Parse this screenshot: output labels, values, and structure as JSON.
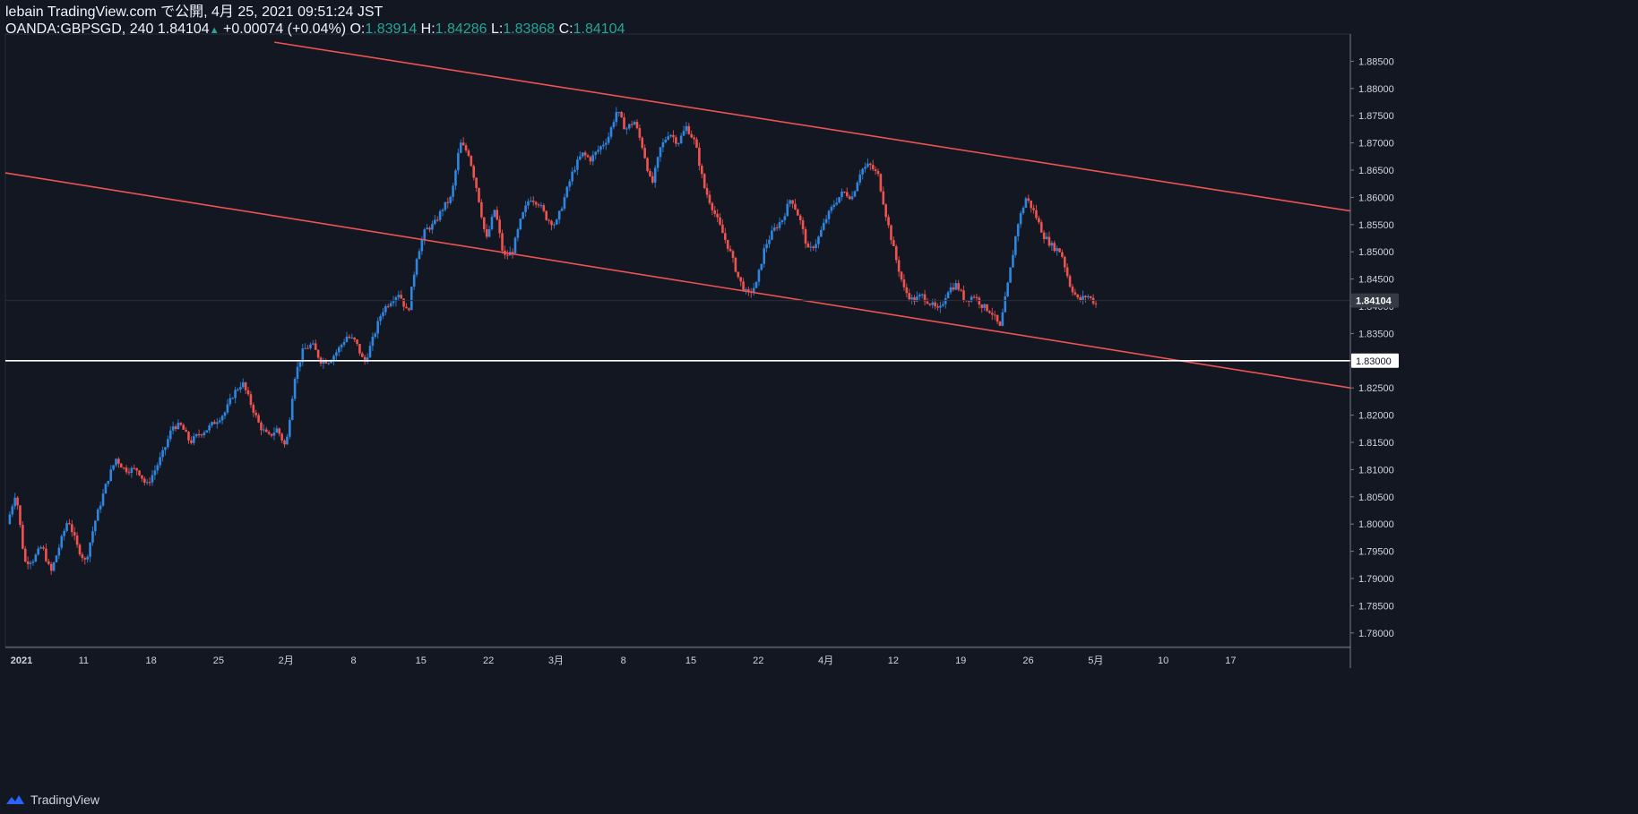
{
  "header": {
    "line1": "lebain TradingView.com で公開, 4月 25, 2021 09:51:24 JST",
    "symbol": "OANDA:GBPSGD, 240",
    "last": "1.84104",
    "up_arrow": "▲",
    "change": "+0.00074 (+0.04%)",
    "o_label": "O:",
    "o_value": "1.83914",
    "h_label": "H:",
    "h_value": "1.84286",
    "l_label": "L:",
    "l_value": "1.83868",
    "c_label": "C:",
    "c_value": "1.84104"
  },
  "footer": {
    "brand": "TradingView",
    "logo_icon": "tradingview-logo-icon"
  },
  "colors": {
    "background": "#131722",
    "up": "#2f86e0",
    "down": "#ef5350",
    "trendline": "#ef5350",
    "support": "#ffffff",
    "grid_text": "#d1d4dc",
    "badge_bg": "#363a45"
  },
  "chart_data": {
    "type": "candlestick",
    "title": "OANDA:GBPSGD, 240",
    "ylim": [
      1.7775,
      1.89
    ],
    "y_ticks": [
      "1.88500",
      "1.88000",
      "1.87500",
      "1.87000",
      "1.86500",
      "1.86000",
      "1.85500",
      "1.85000",
      "1.84500",
      "1.84000",
      "1.83500",
      "1.83000",
      "1.82500",
      "1.82000",
      "1.81500",
      "1.81000",
      "1.80500",
      "1.80000",
      "1.79500",
      "1.79000",
      "1.78500",
      "1.78000"
    ],
    "x_ticks": [
      "2021",
      "11",
      "18",
      "25",
      "2月",
      "8",
      "15",
      "22",
      "3月",
      "8",
      "15",
      "22",
      "4月",
      "12",
      "19",
      "26",
      "5月",
      "10",
      "17"
    ],
    "price_path": [
      [
        0,
        1.8
      ],
      [
        2,
        1.806
      ],
      [
        4,
        1.793
      ],
      [
        6,
        1.7935
      ],
      [
        8,
        1.796
      ],
      [
        10,
        1.791
      ],
      [
        12,
        1.796
      ],
      [
        14,
        1.801
      ],
      [
        16,
        1.796
      ],
      [
        18,
        1.793
      ],
      [
        20,
        1.8
      ],
      [
        23,
        1.808
      ],
      [
        25,
        1.812
      ],
      [
        27,
        1.81
      ],
      [
        30,
        1.81
      ],
      [
        32,
        1.807
      ],
      [
        34,
        1.81
      ],
      [
        36,
        1.8135
      ],
      [
        38,
        1.818
      ],
      [
        40,
        1.818
      ],
      [
        42,
        1.815
      ],
      [
        44,
        1.8165
      ],
      [
        46,
        1.8175
      ],
      [
        48,
        1.819
      ],
      [
        50,
        1.8205
      ],
      [
        52,
        1.824
      ],
      [
        54,
        1.826
      ],
      [
        56,
        1.822
      ],
      [
        58,
        1.818
      ],
      [
        60,
        1.816
      ],
      [
        62,
        1.8175
      ],
      [
        64,
        1.814
      ],
      [
        66,
        1.827
      ],
      [
        68,
        1.832
      ],
      [
        70,
        1.833
      ],
      [
        72,
        1.83
      ],
      [
        74,
        1.83
      ],
      [
        76,
        1.832
      ],
      [
        78,
        1.8345
      ],
      [
        80,
        1.8335
      ],
      [
        82,
        1.8295
      ],
      [
        84,
        1.834
      ],
      [
        86,
        1.839
      ],
      [
        88,
        1.841
      ],
      [
        90,
        1.8425
      ],
      [
        92,
        1.8385
      ],
      [
        94,
        1.849
      ],
      [
        96,
        1.854
      ],
      [
        98,
        1.855
      ],
      [
        100,
        1.858
      ],
      [
        102,
        1.86
      ],
      [
        104,
        1.87
      ],
      [
        106,
        1.868
      ],
      [
        108,
        1.861
      ],
      [
        110,
        1.852
      ],
      [
        112,
        1.858
      ],
      [
        114,
        1.849
      ],
      [
        116,
        1.85
      ],
      [
        118,
        1.856
      ],
      [
        120,
        1.86
      ],
      [
        122,
        1.859
      ],
      [
        124,
        1.856
      ],
      [
        126,
        1.855
      ],
      [
        128,
        1.86
      ],
      [
        130,
        1.865
      ],
      [
        132,
        1.868
      ],
      [
        134,
        1.867
      ],
      [
        136,
        1.869
      ],
      [
        138,
        1.871
      ],
      [
        140,
        1.876
      ],
      [
        142,
        1.8725
      ],
      [
        144,
        1.874
      ],
      [
        146,
        1.869
      ],
      [
        148,
        1.862
      ],
      [
        150,
        1.869
      ],
      [
        152,
        1.872
      ],
      [
        154,
        1.87
      ],
      [
        156,
        1.873
      ],
      [
        158,
        1.87
      ],
      [
        160,
        1.862
      ],
      [
        162,
        1.858
      ],
      [
        164,
        1.854
      ],
      [
        166,
        1.85
      ],
      [
        168,
        1.845
      ],
      [
        170,
        1.842
      ],
      [
        172,
        1.844
      ],
      [
        174,
        1.851
      ],
      [
        176,
        1.854
      ],
      [
        178,
        1.856
      ],
      [
        180,
        1.86
      ],
      [
        182,
        1.856
      ],
      [
        184,
        1.85
      ],
      [
        186,
        1.852
      ],
      [
        188,
        1.856
      ],
      [
        190,
        1.859
      ],
      [
        192,
        1.861
      ],
      [
        194,
        1.86
      ],
      [
        196,
        1.865
      ],
      [
        198,
        1.866
      ],
      [
        200,
        1.864
      ],
      [
        202,
        1.856
      ],
      [
        204,
        1.849
      ],
      [
        206,
        1.843
      ],
      [
        208,
        1.841
      ],
      [
        210,
        1.842
      ],
      [
        212,
        1.8405
      ],
      [
        214,
        1.839
      ],
      [
        216,
        1.843
      ],
      [
        218,
        1.844
      ],
      [
        220,
        1.841
      ],
      [
        222,
        1.842
      ],
      [
        224,
        1.84
      ],
      [
        226,
        1.839
      ],
      [
        228,
        1.836
      ],
      [
        230,
        1.845
      ],
      [
        232,
        1.855
      ],
      [
        234,
        1.86
      ],
      [
        236,
        1.857
      ],
      [
        238,
        1.853
      ],
      [
        240,
        1.851
      ],
      [
        242,
        1.85
      ],
      [
        244,
        1.844
      ],
      [
        246,
        1.841
      ],
      [
        248,
        1.842
      ],
      [
        250,
        1.8405
      ]
    ],
    "upper_trendline": [
      [
        1.8885,
        0.2
      ],
      [
        1.8575,
        1.0
      ]
    ],
    "lower_trendline": [
      [
        1.8645,
        0.0
      ],
      [
        1.825,
        1.0
      ]
    ],
    "support_line": 1.83,
    "current_price": 1.84104,
    "current_price_label": "1.84104",
    "support_label": "1.83000"
  }
}
